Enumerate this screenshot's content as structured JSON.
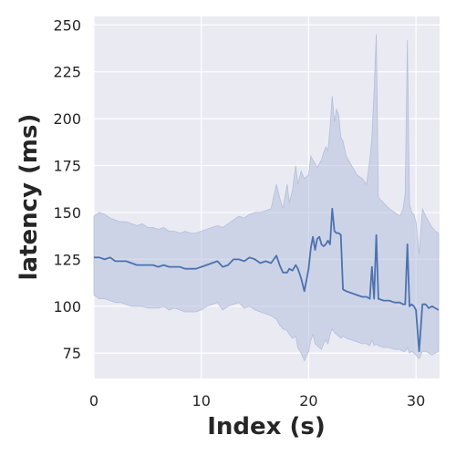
{
  "chart_data": {
    "type": "line",
    "title": "",
    "xlabel": "Index (s)",
    "ylabel": "latency (ms)",
    "xlim": [
      0,
      32.2
    ],
    "ylim": [
      61.5,
      254.5
    ],
    "x_ticks": [
      0,
      10,
      20,
      30
    ],
    "y_ticks": [
      75,
      100,
      125,
      150,
      175,
      200,
      225,
      250
    ],
    "grid": true,
    "colors": {
      "background": "#eaeaf2",
      "grid": "#ffffff",
      "line": "#4c72b0",
      "band": "#b4bfdc"
    },
    "series": [
      {
        "name": "latency",
        "x": [
          0,
          0.5,
          1,
          1.5,
          2,
          2.5,
          3,
          3.5,
          4,
          4.5,
          5,
          5.5,
          6,
          6.5,
          7,
          7.5,
          8,
          8.5,
          9,
          9.5,
          10,
          10.5,
          11,
          11.5,
          12,
          12.5,
          13,
          13.5,
          14,
          14.5,
          15,
          15.5,
          16,
          16.5,
          17,
          17.3,
          17.6,
          18,
          18.2,
          18.5,
          18.8,
          19,
          19.3,
          19.6,
          20,
          20.2,
          20.4,
          20.6,
          20.8,
          21,
          21.2,
          21.4,
          21.6,
          21.8,
          22,
          22.2,
          22.4,
          22.6,
          22.8,
          23,
          23.2,
          23.5,
          24,
          24.5,
          25,
          25.4,
          25.7,
          25.9,
          26.1,
          26.3,
          26.5,
          27,
          27.5,
          28,
          28.5,
          28.8,
          29,
          29.2,
          29.4,
          29.6,
          29.8,
          30,
          30.3,
          30.6,
          30.9,
          31.2,
          31.5,
          31.8,
          32.1
        ],
        "values": [
          126,
          126,
          125,
          126,
          124,
          124,
          124,
          123,
          122,
          122,
          122,
          122,
          121,
          122,
          121,
          121,
          121,
          120,
          120,
          120,
          121,
          122,
          123,
          124,
          121,
          122,
          125,
          125,
          124,
          126,
          125,
          123,
          124,
          123,
          127,
          122,
          118,
          118,
          120,
          119,
          122,
          120,
          115,
          108,
          120,
          131,
          137,
          130,
          136,
          137,
          133,
          132,
          133,
          135,
          133,
          152,
          140,
          139,
          139,
          138,
          109,
          108,
          107,
          106,
          105,
          105,
          104,
          121,
          104,
          138,
          104,
          103,
          103,
          102,
          102,
          101,
          101,
          133,
          100,
          101,
          100,
          98,
          76,
          101,
          101,
          99,
          100,
          99,
          98
        ],
        "upper": [
          148,
          150,
          149,
          147,
          146,
          145,
          145,
          144,
          143,
          144,
          142,
          142,
          141,
          142,
          140,
          140,
          139,
          140,
          139,
          139,
          140,
          141,
          142,
          143,
          142,
          144,
          146,
          148,
          147,
          149,
          150,
          150,
          151,
          152,
          165,
          158,
          152,
          165,
          155,
          162,
          175,
          165,
          172,
          168,
          170,
          180,
          178,
          176,
          174,
          176,
          178,
          182,
          185,
          183,
          195,
          212,
          198,
          205,
          202,
          190,
          188,
          180,
          175,
          170,
          168,
          165,
          178,
          190,
          215,
          245,
          158,
          155,
          152,
          150,
          148,
          152,
          160,
          242,
          155,
          150,
          149,
          145,
          128,
          152,
          148,
          145,
          142,
          140,
          139
        ],
        "lower": [
          106,
          104,
          104,
          103,
          102,
          102,
          101,
          100,
          100,
          100,
          99,
          99,
          99,
          100,
          98,
          99,
          98,
          97,
          97,
          97,
          98,
          100,
          101,
          102,
          98,
          100,
          101,
          102,
          99,
          100,
          98,
          97,
          96,
          95,
          93,
          90,
          88,
          87,
          85,
          83,
          84,
          78,
          75,
          71,
          76,
          82,
          85,
          80,
          79,
          78,
          77,
          80,
          82,
          80,
          85,
          88,
          86,
          85,
          84,
          83,
          84,
          83,
          82,
          81,
          80,
          80,
          79,
          82,
          79,
          80,
          79,
          78,
          78,
          77,
          77,
          76,
          76,
          78,
          75,
          76,
          75,
          74,
          72,
          76,
          76,
          75,
          74,
          75,
          76
        ]
      }
    ]
  }
}
